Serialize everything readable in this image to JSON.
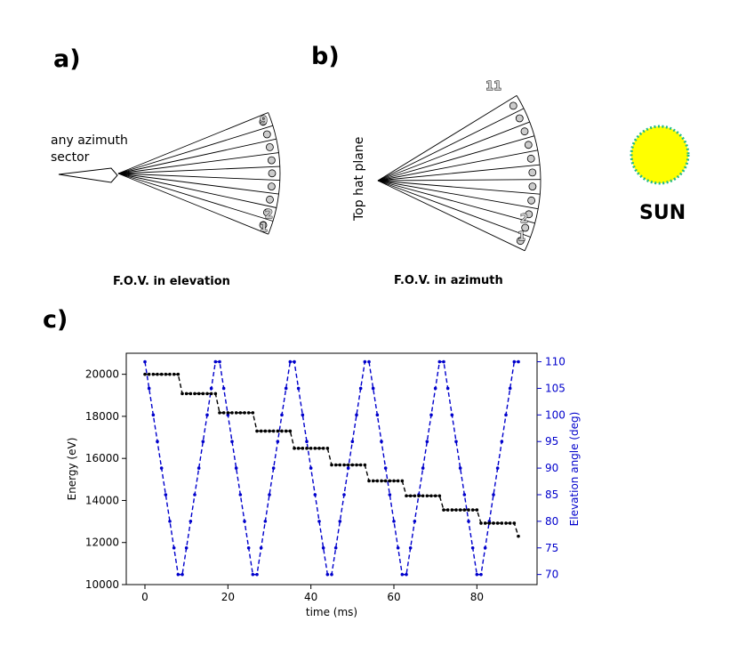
{
  "panel_a": {
    "label": "a)",
    "side_label_line1": "any azimuth",
    "side_label_line2": "sector",
    "caption": "F.O.V. in elevation",
    "numbers": [
      "9",
      "2",
      "1"
    ]
  },
  "panel_b": {
    "label": "b)",
    "side_label": "Top hat plane",
    "caption": "F.O.V. in azimuth",
    "numbers": [
      "11",
      "2",
      "1"
    ]
  },
  "sun": {
    "label": "SUN",
    "fill": "#ffff00",
    "edge": "#22bb88"
  },
  "panel_c": {
    "label": "c)"
  },
  "chart_data": {
    "type": "line",
    "xlabel": "time (ms)",
    "ylabel_left": "Energy (eV)",
    "ylabel_right": "Elevation angle (deg)",
    "xlim": [
      -4.5,
      94.5
    ],
    "ylim_left": [
      10000,
      21000
    ],
    "ylim_right": [
      68.1,
      111.6
    ],
    "xticks": [
      0,
      20,
      40,
      60,
      80
    ],
    "yticks_left": [
      10000,
      12000,
      14000,
      16000,
      18000,
      20000
    ],
    "yticks_right": [
      70,
      75,
      80,
      85,
      90,
      95,
      100,
      105,
      110
    ],
    "series": [
      {
        "axis": "left",
        "color": "#000000",
        "style": "dashed with dot markers",
        "steps": [
          {
            "x_start": 0,
            "x_end": 8,
            "value": 20000
          },
          {
            "x_start": 9,
            "x_end": 17,
            "value": 19080
          },
          {
            "x_start": 18,
            "x_end": 26,
            "value": 18170
          },
          {
            "x_start": 27,
            "x_end": 35,
            "value": 17300
          },
          {
            "x_start": 36,
            "x_end": 44,
            "value": 16480
          },
          {
            "x_start": 45,
            "x_end": 53,
            "value": 15690
          },
          {
            "x_start": 54,
            "x_end": 62,
            "value": 14930
          },
          {
            "x_start": 63,
            "x_end": 71,
            "value": 14220
          },
          {
            "x_start": 72,
            "x_end": 80,
            "value": 13550
          },
          {
            "x_start": 81,
            "x_end": 89,
            "value": 12920
          },
          {
            "x_start": 90,
            "x_end": 90,
            "value": 12300
          }
        ]
      },
      {
        "axis": "right",
        "color": "#0000cc",
        "style": "dashed with dot markers",
        "x": [
          0,
          8,
          9,
          17,
          18,
          26,
          27,
          35,
          36,
          44,
          45,
          53,
          54,
          62,
          63,
          71,
          72,
          80,
          81,
          89,
          90
        ],
        "y": [
          110,
          70,
          70,
          110,
          110,
          70,
          70,
          110,
          110,
          70,
          70,
          110,
          110,
          70,
          70,
          110,
          110,
          70,
          70,
          110,
          110
        ]
      }
    ]
  }
}
